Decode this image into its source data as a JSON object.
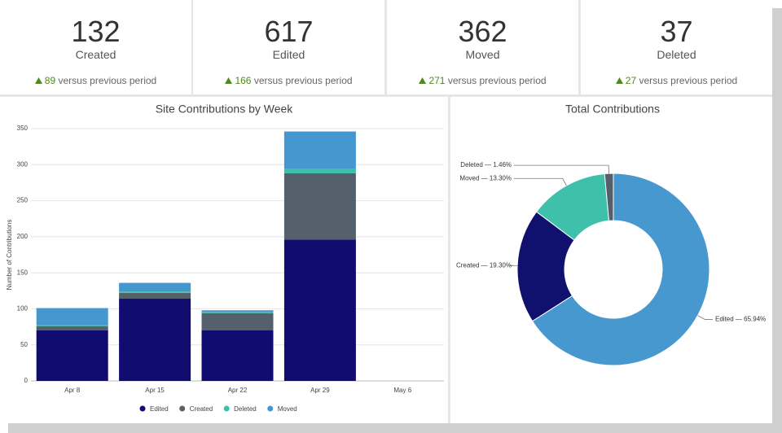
{
  "kpis": [
    {
      "value": 132,
      "label": "Created",
      "change": 89,
      "change_text": "versus previous period"
    },
    {
      "value": 617,
      "label": "Edited",
      "change": 166,
      "change_text": "versus previous period"
    },
    {
      "value": 362,
      "label": "Moved",
      "change": 271,
      "change_text": "versus previous period"
    },
    {
      "value": 37,
      "label": "Deleted",
      "change": 27,
      "change_text": "versus previous period"
    }
  ],
  "chart_data": [
    {
      "type": "bar",
      "stacked": true,
      "title": "Site Contributions by Week",
      "y_label": "Number of Contributions",
      "categories": [
        "Apr 8",
        "Apr 15",
        "Apr 22",
        "Apr 29",
        "May 6"
      ],
      "series": [
        {
          "name": "Edited",
          "color": "#100c70",
          "values": [
            70,
            114,
            70,
            196,
            null
          ]
        },
        {
          "name": "Created",
          "color": "#54616c",
          "values": [
            6,
            8,
            24,
            92,
            null
          ]
        },
        {
          "name": "Deleted",
          "color": "#3dbfa9",
          "values": [
            1,
            2,
            2,
            6,
            null
          ]
        },
        {
          "name": "Moved",
          "color": "#4597d0",
          "values": [
            24,
            12,
            2,
            52,
            null
          ]
        }
      ],
      "ylim": [
        0,
        350
      ],
      "yticks": [
        0,
        50,
        100,
        150,
        200,
        250,
        300,
        350
      ],
      "grid": true,
      "legend": "bottom"
    },
    {
      "type": "donut",
      "title": "Total Contributions",
      "categories": [
        "Edited",
        "Created",
        "Moved",
        "Deleted"
      ],
      "values": [
        65.94,
        19.3,
        13.3,
        1.46
      ],
      "value_labels": [
        "Edited — 65.94%",
        "Created — 19.30%",
        "Moved — 13.30%",
        "Deleted — 1.46%"
      ],
      "colors": [
        "#4898d0",
        "#10106e",
        "#3fc0aa",
        "#545f6a"
      ]
    }
  ]
}
